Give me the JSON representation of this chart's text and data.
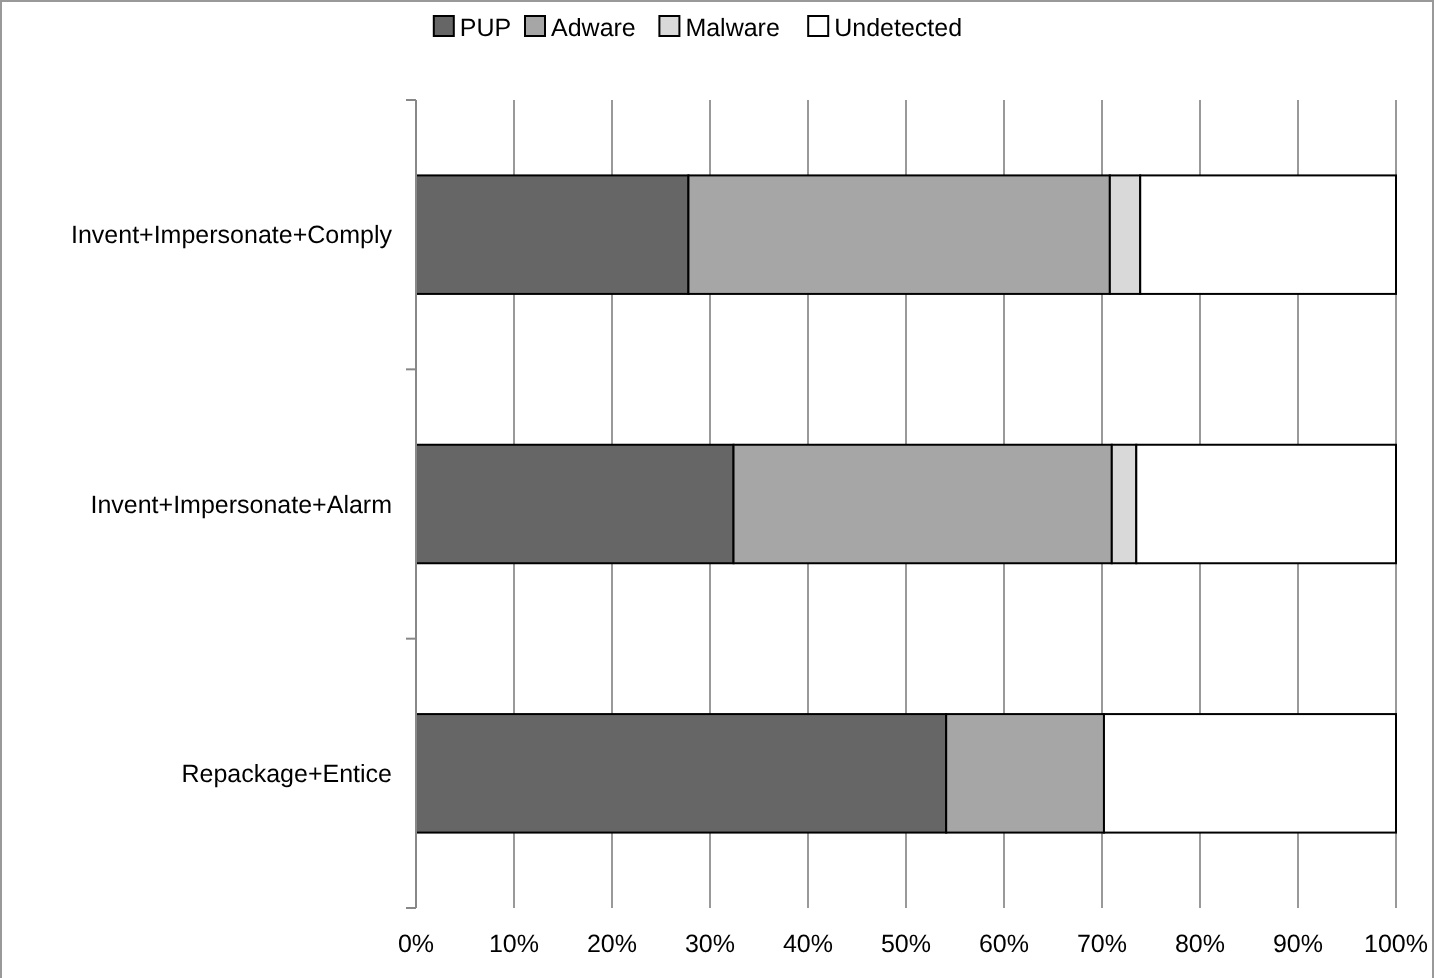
{
  "chart_data": {
    "type": "bar",
    "orientation": "horizontal",
    "stacked": true,
    "categories": [
      "Invent+Impersonate+Comply",
      "Invent+Impersonate+Alarm",
      "Repackage+Entice"
    ],
    "series": [
      {
        "name": "PUP",
        "color": "#666666",
        "values": [
          27.8,
          32.4,
          54.1
        ]
      },
      {
        "name": "Adware",
        "color": "#a6a6a6",
        "values": [
          43,
          38.6,
          16.1
        ]
      },
      {
        "name": "Malware",
        "color": "#d9d9d9",
        "values": [
          3.1,
          2.5,
          0
        ]
      },
      {
        "name": "Undetected",
        "color": "#ffffff",
        "values": [
          26.1,
          26.5,
          29.8
        ]
      }
    ],
    "xlim": [
      0,
      100
    ],
    "xticks": [
      {
        "value": 0,
        "label": "0%"
      },
      {
        "value": 10,
        "label": "10%"
      },
      {
        "value": 20,
        "label": "20%"
      },
      {
        "value": 30,
        "label": "30%"
      },
      {
        "value": 40,
        "label": "40%"
      },
      {
        "value": 50,
        "label": "50%"
      },
      {
        "value": 60,
        "label": "60%"
      },
      {
        "value": 70,
        "label": "70%"
      },
      {
        "value": 80,
        "label": "80%"
      },
      {
        "value": 90,
        "label": "90%"
      },
      {
        "value": 100,
        "label": "100%"
      }
    ],
    "grid": "x",
    "legend": "top"
  }
}
